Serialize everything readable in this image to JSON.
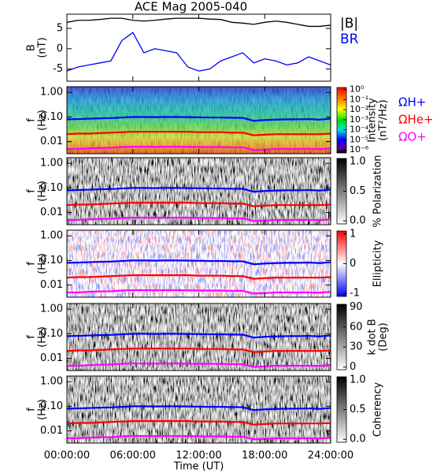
{
  "chart_data": [
    {
      "type": "line",
      "title": "ACE Mag 2005-040",
      "y_label": [
        "B",
        "(nT)"
      ],
      "x": [
        0,
        1,
        2,
        3,
        4,
        5,
        6,
        7,
        8,
        9,
        10,
        11,
        12,
        13,
        14,
        15,
        16,
        17,
        18,
        19,
        20,
        21,
        22,
        23,
        24
      ],
      "xlim": [
        0,
        24
      ],
      "xticks": [
        0,
        6,
        12,
        18,
        24
      ],
      "ylim": [
        -8,
        8.5
      ],
      "yticks": [
        -5,
        0,
        5
      ],
      "legend": true,
      "series": [
        {
          "name": "|B|",
          "color": "#000000",
          "values": [
            6.5,
            7,
            7,
            7.2,
            7.5,
            7.5,
            7,
            6.8,
            7,
            7.3,
            7.5,
            7.5,
            7.5,
            7.3,
            7.2,
            6.5,
            6.3,
            6,
            6.5,
            6.8,
            6.5,
            6,
            5.5,
            5.5,
            5.8
          ]
        },
        {
          "name": "BR",
          "color": "#0000ff",
          "values": [
            -5.5,
            -4.5,
            -4,
            -3.5,
            -3,
            2,
            4,
            -1,
            0,
            -0.5,
            -1,
            -4.5,
            -5.5,
            -5,
            -3,
            -2,
            -1,
            -3.5,
            -2.5,
            -3,
            -4,
            -3.5,
            -2,
            -3,
            -4
          ]
        }
      ]
    },
    {
      "type": "spectrogram",
      "colormap": "rainbow",
      "y_label": [
        "f",
        "(Hz)"
      ],
      "log_y": true,
      "x": [
        0,
        1,
        2,
        3,
        4,
        5,
        6,
        7,
        8,
        9,
        10,
        11,
        12,
        13,
        14,
        15,
        16,
        17,
        18,
        19,
        20,
        21,
        22,
        23,
        24
      ],
      "xlim": [
        0,
        24
      ],
      "xticks": [
        0,
        6,
        12,
        18,
        24
      ],
      "ylim": [
        0.0032,
        1.7
      ],
      "yticks": [
        {
          "value": 1,
          "label": "1.00"
        },
        {
          "value": 0.1,
          "label": "0.10"
        },
        0.01
      ],
      "colorbar": {
        "label": [
          "Intensity",
          "(nT²/Hz)"
        ],
        "log": true,
        "clim": [
          5e-07,
          1.6
        ],
        "cticks": [
          {
            "value": 1,
            "label": "10⁰"
          },
          {
            "value": 0.1,
            "label": "10⁻¹"
          },
          {
            "value": 0.01,
            "label": "10⁻²"
          },
          {
            "value": 0.001,
            "label": "10⁻³"
          },
          {
            "value": 0.0001,
            "label": "10⁻⁴"
          },
          {
            "value": 1e-05,
            "label": "10⁻⁵"
          },
          {
            "value": 1e-06,
            "label": "10⁻⁶"
          }
        ]
      },
      "legend": true,
      "series": [
        {
          "name": "ΩH+",
          "color": "#0000ff",
          "values": [
            0.08,
            0.082,
            0.085,
            0.088,
            0.09,
            0.095,
            0.1,
            0.1,
            0.098,
            0.1,
            0.1,
            0.098,
            0.097,
            0.095,
            0.095,
            0.093,
            0.092,
            0.07,
            0.075,
            0.078,
            0.08,
            0.08,
            0.082,
            0.078,
            0.085
          ]
        },
        {
          "name": "ΩHe+",
          "color": "#ff0000",
          "values": [
            0.02,
            0.021,
            0.021,
            0.022,
            0.023,
            0.024,
            0.025,
            0.025,
            0.025,
            0.025,
            0.025,
            0.025,
            0.024,
            0.024,
            0.024,
            0.023,
            0.023,
            0.018,
            0.019,
            0.02,
            0.02,
            0.02,
            0.02,
            0.02,
            0.021
          ]
        },
        {
          "name": "ΩO+",
          "color": "#ff00ff",
          "values": [
            0.005,
            0.005,
            0.0053,
            0.0055,
            0.0056,
            0.006,
            0.0062,
            0.0062,
            0.0061,
            0.0062,
            0.0062,
            0.0061,
            0.006,
            0.006,
            0.006,
            0.0058,
            0.0058,
            0.0045,
            0.0047,
            0.005,
            0.005,
            0.005,
            0.005,
            0.0049,
            0.0053
          ]
        }
      ]
    },
    {
      "type": "spectrogram",
      "colormap": "gray",
      "y_label": [
        "f",
        "(Hz)"
      ],
      "log_y": true,
      "x": [
        0,
        1,
        2,
        3,
        4,
        5,
        6,
        7,
        8,
        9,
        10,
        11,
        12,
        13,
        14,
        15,
        16,
        17,
        18,
        19,
        20,
        21,
        22,
        23,
        24
      ],
      "xlim": [
        0,
        24
      ],
      "xticks": [
        0,
        6,
        12,
        18,
        24
      ],
      "ylim": [
        0.0032,
        1.7
      ],
      "yticks": [
        {
          "value": 1,
          "label": "1.00"
        },
        {
          "value": 0.1,
          "label": "0.10"
        },
        0.01
      ],
      "colorbar": {
        "label": [
          "% Polarization"
        ],
        "log": false,
        "clim": [
          -0.05,
          1.05
        ],
        "cticks": [
          {
            "value": 0,
            "label": "0.0"
          },
          0.5,
          {
            "value": 1,
            "label": "1.0"
          }
        ]
      },
      "legend": false,
      "series": [
        {
          "color": "#0000ff",
          "values": [
            0.08,
            0.082,
            0.085,
            0.088,
            0.09,
            0.095,
            0.1,
            0.1,
            0.098,
            0.1,
            0.1,
            0.098,
            0.097,
            0.095,
            0.095,
            0.093,
            0.092,
            0.07,
            0.075,
            0.078,
            0.08,
            0.08,
            0.082,
            0.078,
            0.085
          ]
        },
        {
          "color": "#ff0000",
          "values": [
            0.02,
            0.021,
            0.021,
            0.022,
            0.023,
            0.024,
            0.025,
            0.025,
            0.025,
            0.025,
            0.025,
            0.025,
            0.024,
            0.024,
            0.024,
            0.023,
            0.023,
            0.018,
            0.019,
            0.02,
            0.02,
            0.02,
            0.02,
            0.02,
            0.021
          ]
        },
        {
          "color": "#ff00ff",
          "values": [
            0.005,
            0.005,
            0.0053,
            0.0055,
            0.0056,
            0.006,
            0.0062,
            0.0062,
            0.0061,
            0.0062,
            0.0062,
            0.0061,
            0.006,
            0.006,
            0.006,
            0.0058,
            0.0058,
            0.0045,
            0.0047,
            0.005,
            0.005,
            0.005,
            0.005,
            0.0049,
            0.0053
          ]
        }
      ]
    },
    {
      "type": "spectrogram",
      "colormap": "bwr",
      "y_label": [
        "f",
        "(Hz)"
      ],
      "log_y": true,
      "x": [
        0,
        1,
        2,
        3,
        4,
        5,
        6,
        7,
        8,
        9,
        10,
        11,
        12,
        13,
        14,
        15,
        16,
        17,
        18,
        19,
        20,
        21,
        22,
        23,
        24
      ],
      "xlim": [
        0,
        24
      ],
      "xticks": [
        0,
        6,
        12,
        18,
        24
      ],
      "ylim": [
        0.0032,
        1.7
      ],
      "yticks": [
        {
          "value": 1,
          "label": "1.00"
        },
        {
          "value": 0.1,
          "label": "0.10"
        },
        0.01
      ],
      "colorbar": {
        "label": [
          "Ellipticity"
        ],
        "log": false,
        "clim": [
          -1.1,
          1.1
        ],
        "cticks": [
          -1,
          0,
          1
        ]
      },
      "legend": false,
      "series": [
        {
          "color": "#0000ff",
          "values": [
            0.08,
            0.082,
            0.085,
            0.088,
            0.09,
            0.095,
            0.1,
            0.1,
            0.098,
            0.1,
            0.1,
            0.098,
            0.097,
            0.095,
            0.095,
            0.093,
            0.092,
            0.07,
            0.075,
            0.078,
            0.08,
            0.08,
            0.082,
            0.078,
            0.085
          ]
        },
        {
          "color": "#ff0000",
          "values": [
            0.02,
            0.021,
            0.021,
            0.022,
            0.023,
            0.024,
            0.025,
            0.025,
            0.025,
            0.025,
            0.025,
            0.025,
            0.024,
            0.024,
            0.024,
            0.023,
            0.023,
            0.018,
            0.019,
            0.02,
            0.02,
            0.02,
            0.02,
            0.02,
            0.021
          ]
        },
        {
          "color": "#ff00ff",
          "values": [
            0.005,
            0.005,
            0.0053,
            0.0055,
            0.0056,
            0.006,
            0.0062,
            0.0062,
            0.0061,
            0.0062,
            0.0062,
            0.0061,
            0.006,
            0.006,
            0.006,
            0.0058,
            0.0058,
            0.0045,
            0.0047,
            0.005,
            0.005,
            0.005,
            0.005,
            0.0049,
            0.0053
          ]
        }
      ]
    },
    {
      "type": "spectrogram",
      "colormap": "gray",
      "y_label": [
        "f",
        "(Hz)"
      ],
      "log_y": true,
      "x": [
        0,
        1,
        2,
        3,
        4,
        5,
        6,
        7,
        8,
        9,
        10,
        11,
        12,
        13,
        14,
        15,
        16,
        17,
        18,
        19,
        20,
        21,
        22,
        23,
        24
      ],
      "xlim": [
        0,
        24
      ],
      "xticks": [
        0,
        6,
        12,
        18,
        24
      ],
      "ylim": [
        0.0032,
        1.7
      ],
      "yticks": [
        {
          "value": 1,
          "label": "1.00"
        },
        {
          "value": 0.1,
          "label": "0.10"
        },
        0.01
      ],
      "colorbar": {
        "label": [
          "k dot B",
          "(Deg)"
        ],
        "log": false,
        "clim": [
          -4,
          94
        ],
        "cticks": [
          0,
          30,
          60,
          90
        ]
      },
      "legend": false,
      "series": [
        {
          "color": "#0000ff",
          "values": [
            0.08,
            0.082,
            0.085,
            0.088,
            0.09,
            0.095,
            0.1,
            0.1,
            0.098,
            0.1,
            0.1,
            0.098,
            0.097,
            0.095,
            0.095,
            0.093,
            0.092,
            0.07,
            0.075,
            0.078,
            0.08,
            0.08,
            0.082,
            0.078,
            0.085
          ]
        },
        {
          "color": "#ff0000",
          "values": [
            0.02,
            0.021,
            0.021,
            0.022,
            0.023,
            0.024,
            0.025,
            0.025,
            0.025,
            0.025,
            0.025,
            0.025,
            0.024,
            0.024,
            0.024,
            0.023,
            0.023,
            0.018,
            0.019,
            0.02,
            0.02,
            0.02,
            0.02,
            0.02,
            0.021
          ]
        },
        {
          "color": "#ff00ff",
          "values": [
            0.005,
            0.005,
            0.0053,
            0.0055,
            0.0056,
            0.006,
            0.0062,
            0.0062,
            0.0061,
            0.0062,
            0.0062,
            0.0061,
            0.006,
            0.006,
            0.006,
            0.0058,
            0.0058,
            0.0045,
            0.0047,
            0.005,
            0.005,
            0.005,
            0.005,
            0.0049,
            0.0053
          ]
        }
      ]
    },
    {
      "type": "spectrogram",
      "colormap": "gray",
      "y_label": [
        "f",
        "(Hz)"
      ],
      "log_y": true,
      "x": [
        0,
        1,
        2,
        3,
        4,
        5,
        6,
        7,
        8,
        9,
        10,
        11,
        12,
        13,
        14,
        15,
        16,
        17,
        18,
        19,
        20,
        21,
        22,
        23,
        24
      ],
      "xlim": [
        0,
        24
      ],
      "xticks": [
        {
          "value": 0,
          "label": "00:00:00"
        },
        {
          "value": 6,
          "label": "06:00:00"
        },
        {
          "value": 12,
          "label": "12:00:00"
        },
        {
          "value": 18,
          "label": "18:00:00"
        },
        {
          "value": 24,
          "label": "24:00:00"
        }
      ],
      "x_label": "Time (UT)",
      "ylim": [
        0.0032,
        1.7
      ],
      "yticks": [
        {
          "value": 1,
          "label": "1.00"
        },
        {
          "value": 0.1,
          "label": "0.10"
        },
        0.01
      ],
      "colorbar": {
        "label": [
          "Coherency"
        ],
        "log": false,
        "clim": [
          -0.05,
          1.05
        ],
        "cticks": [
          {
            "value": 0,
            "label": "0.0"
          },
          0.5,
          {
            "value": 1,
            "label": "1.0"
          }
        ]
      },
      "legend": false,
      "series": [
        {
          "color": "#0000ff",
          "values": [
            0.08,
            0.082,
            0.085,
            0.088,
            0.09,
            0.095,
            0.1,
            0.1,
            0.098,
            0.1,
            0.1,
            0.098,
            0.097,
            0.095,
            0.095,
            0.093,
            0.092,
            0.07,
            0.075,
            0.078,
            0.08,
            0.08,
            0.082,
            0.078,
            0.085
          ]
        },
        {
          "color": "#ff0000",
          "values": [
            0.02,
            0.021,
            0.021,
            0.022,
            0.023,
            0.024,
            0.025,
            0.025,
            0.025,
            0.025,
            0.025,
            0.025,
            0.024,
            0.024,
            0.024,
            0.023,
            0.023,
            0.018,
            0.019,
            0.02,
            0.02,
            0.02,
            0.02,
            0.02,
            0.021
          ]
        },
        {
          "color": "#ff00ff",
          "values": [
            0.005,
            0.005,
            0.0053,
            0.0055,
            0.0056,
            0.006,
            0.0062,
            0.0062,
            0.0061,
            0.0062,
            0.0062,
            0.0061,
            0.006,
            0.006,
            0.006,
            0.0058,
            0.0058,
            0.0045,
            0.0047,
            0.005,
            0.005,
            0.005,
            0.005,
            0.0049,
            0.0053
          ]
        }
      ]
    }
  ]
}
